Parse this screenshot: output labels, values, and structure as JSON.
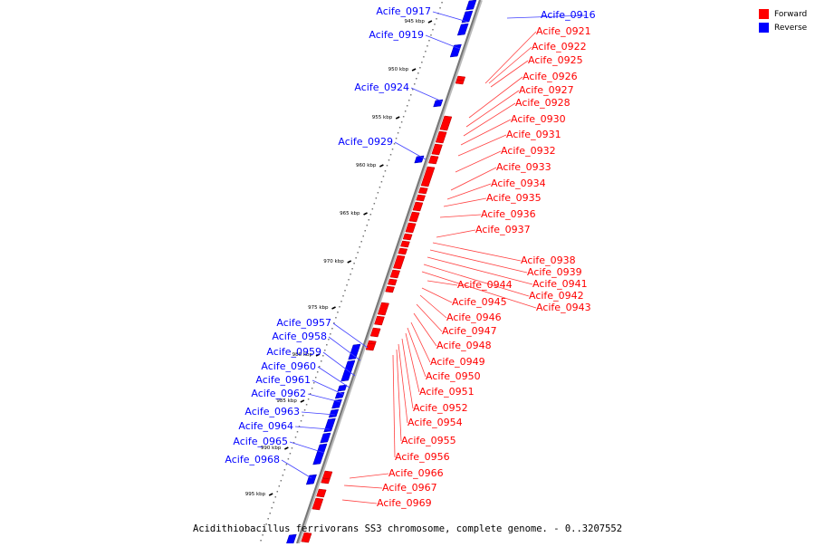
{
  "legend": {
    "forward_label": "Forward",
    "reverse_label": "Reverse",
    "forward_color": "#ff0000",
    "reverse_color": "#0000ff"
  },
  "caption": "Acidithiobacillus ferrivorans SS3 chromosome, complete genome. - 0..3207552",
  "scale": {
    "ticks": [
      "945 kbp",
      "950 kbp",
      "955 kbp",
      "960 kbp",
      "965 kbp",
      "970 kbp",
      "975 kbp",
      "980 kbp",
      "985 kbp",
      "990 kbp",
      "995 kbp"
    ]
  },
  "reverse_genes": [
    "Acife_0916",
    "Acife_0917",
    "Acife_0919",
    "Acife_0924",
    "Acife_0929",
    "Acife_0957",
    "Acife_0958",
    "Acife_0959",
    "Acife_0960",
    "Acife_0961",
    "Acife_0962",
    "Acife_0963",
    "Acife_0964",
    "Acife_0965",
    "Acife_0968"
  ],
  "forward_genes": [
    "Acife_0921",
    "Acife_0922",
    "Acife_0925",
    "Acife_0926",
    "Acife_0927",
    "Acife_0928",
    "Acife_0930",
    "Acife_0931",
    "Acife_0932",
    "Acife_0933",
    "Acife_0934",
    "Acife_0935",
    "Acife_0936",
    "Acife_0937",
    "Acife_0938",
    "Acife_0939",
    "Acife_0941",
    "Acife_0942",
    "Acife_0943",
    "Acife_0944",
    "Acife_0945",
    "Acife_0946",
    "Acife_0947",
    "Acife_0948",
    "Acife_0949",
    "Acife_0950",
    "Acife_0951",
    "Acife_0952",
    "Acife_0954",
    "Acife_0955",
    "Acife_0956",
    "Acife_0966",
    "Acife_0967",
    "Acife_0969"
  ]
}
